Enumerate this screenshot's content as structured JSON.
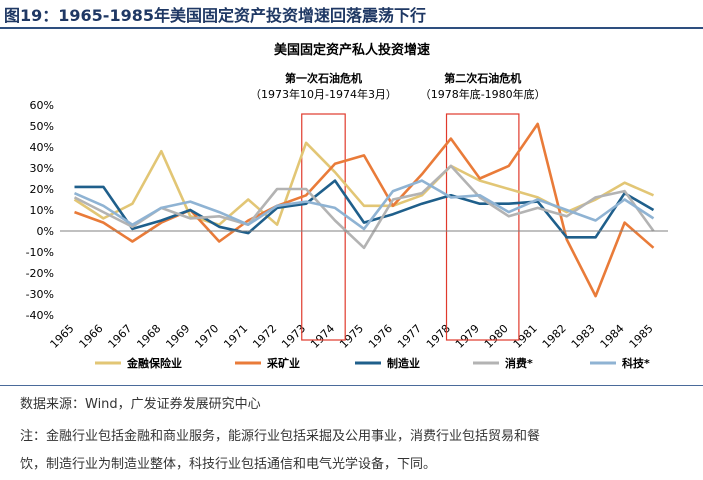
{
  "figure": {
    "title": "图19：1965-1985年美国固定资产投资增速回落震荡下行",
    "source": "数据来源：Wind，广发证券发展研究中心",
    "note_line1": "注：金融行业包括金融和商业服务，能源行业包括采掘及公用事业，消费行业包括贸易和餐",
    "note_line2": "饮，制造行业为制造业整体，科技行业包括通信和电气光学设备，下同。"
  },
  "chart_data": {
    "type": "line",
    "title": "美国固定资产私人投资增速",
    "xlabel": "",
    "ylabel": "",
    "categories": [
      "1965",
      "1966",
      "1967",
      "1968",
      "1969",
      "1970",
      "1971",
      "1972",
      "1973",
      "1974",
      "1975",
      "1976",
      "1977",
      "1978",
      "1979",
      "1980",
      "1981",
      "1982",
      "1983",
      "1984",
      "1985"
    ],
    "ylim": [
      -40,
      60
    ],
    "yticks": [
      -40,
      -30,
      -20,
      -10,
      0,
      10,
      20,
      30,
      40,
      50,
      60
    ],
    "ytick_labels": [
      "-40%",
      "-30%",
      "-20%",
      "-10%",
      "0%",
      "10%",
      "20%",
      "30%",
      "40%",
      "50%",
      "60%"
    ],
    "series": [
      {
        "name": "金融保险业",
        "color": "#e2c675",
        "values": [
          15,
          6,
          13,
          38,
          7,
          3,
          15,
          3,
          42,
          28,
          12,
          12,
          17,
          31,
          24,
          20,
          16,
          9,
          15,
          23,
          17
        ]
      },
      {
        "name": "采矿业",
        "color": "#e97b39",
        "values": [
          9,
          4,
          -5,
          4,
          10,
          -5,
          5,
          12,
          17,
          32,
          36,
          12,
          27,
          44,
          25,
          31,
          51,
          -4,
          -31,
          4,
          -8
        ]
      },
      {
        "name": "制造业",
        "color": "#1f5f8b",
        "values": [
          21,
          21,
          1,
          5,
          10,
          2,
          -1,
          11,
          13,
          24,
          4,
          8,
          13,
          17,
          13,
          13,
          14,
          -3,
          -3,
          18,
          10
        ]
      },
      {
        "name": "消费*",
        "color": "#b3b3b3",
        "values": [
          16,
          9,
          2,
          11,
          6,
          7,
          3,
          20,
          20,
          5,
          -8,
          15,
          18,
          31,
          16,
          7,
          11,
          7,
          16,
          19,
          0
        ]
      },
      {
        "name": "科技*",
        "color": "#8fb3d3",
        "values": [
          18,
          12,
          3,
          11,
          14,
          9,
          3,
          12,
          14,
          11,
          1,
          19,
          24,
          16,
          17,
          9,
          15,
          10,
          5,
          15,
          6
        ]
      }
    ],
    "annotations": [
      {
        "title": "第一次石油危机",
        "subtitle": "（1973年10月-1974年3月）",
        "from": "1973",
        "to": "1974"
      },
      {
        "title": "第二次石油危机",
        "subtitle": "（1978年底-1980年底）",
        "from": "1978",
        "to": "1980"
      }
    ],
    "legend_position": "bottom",
    "grid": false
  }
}
